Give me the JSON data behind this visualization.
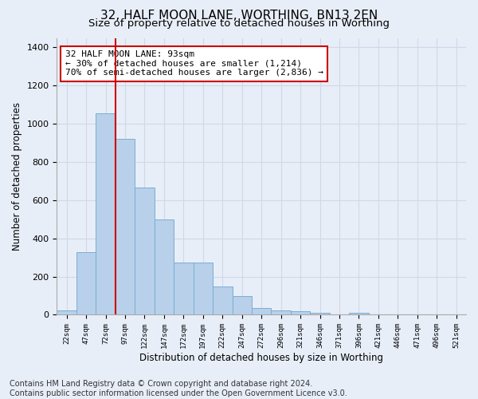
{
  "title": "32, HALF MOON LANE, WORTHING, BN13 2EN",
  "subtitle": "Size of property relative to detached houses in Worthing",
  "xlabel": "Distribution of detached houses by size in Worthing",
  "ylabel": "Number of detached properties",
  "bar_values": [
    22,
    330,
    1055,
    920,
    665,
    498,
    275,
    275,
    150,
    100,
    35,
    22,
    18,
    12,
    0,
    10,
    0,
    0,
    0,
    0,
    0
  ],
  "bar_labels": [
    "22sqm",
    "47sqm",
    "72sqm",
    "97sqm",
    "122sqm",
    "147sqm",
    "172sqm",
    "197sqm",
    "222sqm",
    "247sqm",
    "272sqm",
    "296sqm",
    "321sqm",
    "346sqm",
    "371sqm",
    "396sqm",
    "421sqm",
    "446sqm",
    "471sqm",
    "496sqm",
    "521sqm"
  ],
  "bar_color": "#b8d0ea",
  "bar_edge_color": "#7aadd4",
  "vline_color": "#cc0000",
  "annotation_text": "32 HALF MOON LANE: 93sqm\n← 30% of detached houses are smaller (1,214)\n70% of semi-detached houses are larger (2,836) →",
  "annotation_box_color": "#ffffff",
  "annotation_box_edge": "#cc0000",
  "ylim": [
    0,
    1450
  ],
  "yticks": [
    0,
    200,
    400,
    600,
    800,
    1000,
    1200,
    1400
  ],
  "grid_color": "#d0d8e8",
  "background_color": "#e8eef8",
  "footer_text": "Contains HM Land Registry data © Crown copyright and database right 2024.\nContains public sector information licensed under the Open Government Licence v3.0.",
  "title_fontsize": 11,
  "subtitle_fontsize": 9.5,
  "label_fontsize": 8.5,
  "tick_fontsize": 8,
  "footer_fontsize": 7
}
